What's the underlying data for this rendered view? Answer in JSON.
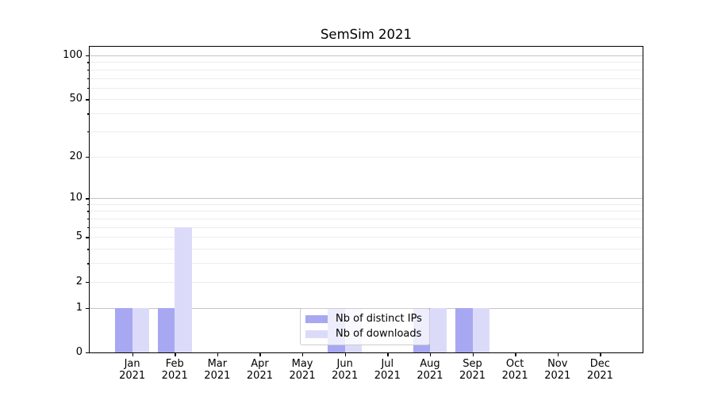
{
  "chart_data": {
    "type": "bar",
    "title": "SemSim 2021",
    "categories": [
      "Jan",
      "Feb",
      "Mar",
      "Apr",
      "May",
      "Jun",
      "Jul",
      "Aug",
      "Sep",
      "Oct",
      "Nov",
      "Dec"
    ],
    "category_year": "2021",
    "series": [
      {
        "name": "Nb of distinct IPs",
        "color": "#a7a7f2",
        "values": [
          1,
          1,
          0,
          0,
          0,
          1,
          0,
          1,
          1,
          0,
          0,
          0
        ]
      },
      {
        "name": "Nb of downloads",
        "color": "#dbdbf9",
        "values": [
          1,
          6,
          0,
          0,
          0,
          1,
          0,
          1,
          1,
          0,
          0,
          0
        ]
      }
    ],
    "y_axis": {
      "scale": "log1p",
      "ticks": [
        0,
        1,
        2,
        5,
        10,
        20,
        50,
        100
      ],
      "minor_ticks": [
        3,
        4,
        6,
        7,
        8,
        9,
        30,
        40,
        60,
        70,
        80,
        90
      ],
      "max": 114.6
    },
    "x_axis": {
      "tick_label_lines": 2
    },
    "grid": {
      "major_values": [
        1,
        10,
        100
      ],
      "major_color": "#c4c4c4",
      "minor_color": "#ececec"
    },
    "legend": {
      "position": "lower-center-inside",
      "entries": [
        "Nb of distinct IPs",
        "Nb of downloads"
      ]
    },
    "colors": {
      "spine": "#000000",
      "text": "#000000",
      "background": "#ffffff"
    }
  }
}
